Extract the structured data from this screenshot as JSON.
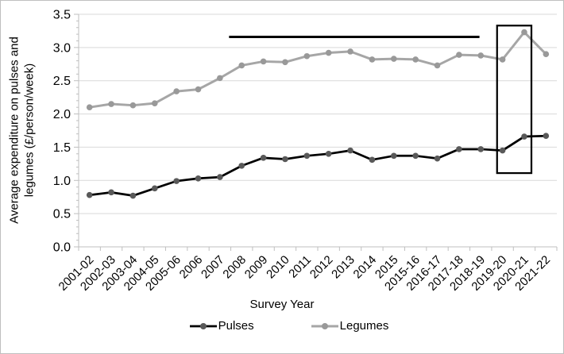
{
  "chart_data": {
    "type": "line",
    "xlabel": "Survey Year",
    "ylabel": "Average expenditure on pulses and legumes (£/person/week)",
    "ylabel_lines": [
      "Average expenditure on pulses and",
      "legumes (£/person/week)"
    ],
    "categories": [
      "2001-02",
      "2002-03",
      "2003-04",
      "2004-05",
      "2005-06",
      "2006",
      "2007",
      "2008",
      "2009",
      "2010",
      "2011",
      "2012",
      "2013",
      "2014",
      "2015",
      "2015-16",
      "2016-17",
      "2017-18",
      "2018-19",
      "2019-20",
      "2020-21",
      "2021-22"
    ],
    "series": [
      {
        "name": "Pulses",
        "color": "#000000",
        "marker_color": "#595959",
        "line_width": 2.75,
        "values": [
          0.78,
          0.82,
          0.77,
          0.88,
          0.99,
          1.03,
          1.05,
          1.22,
          1.34,
          1.32,
          1.37,
          1.4,
          1.45,
          1.31,
          1.37,
          1.37,
          1.33,
          1.47,
          1.47,
          1.45,
          1.66,
          1.67
        ]
      },
      {
        "name": "Legumes",
        "color": "#a6a6a6",
        "marker_color": "#999999",
        "line_width": 3,
        "values": [
          2.1,
          2.15,
          2.13,
          2.16,
          2.34,
          2.37,
          2.54,
          2.73,
          2.79,
          2.78,
          2.87,
          2.92,
          2.94,
          2.82,
          2.83,
          2.82,
          2.73,
          2.89,
          2.88,
          2.82,
          3.23,
          2.9
        ]
      }
    ],
    "ylim": [
      0,
      3.5
    ],
    "ytick_step": 0.5,
    "ytick_labels": [
      "0.0",
      "0.5",
      "1.0",
      "1.5",
      "2.0",
      "2.5",
      "3.0",
      "3.5"
    ],
    "y_minor_step": 0.1,
    "grid": "horizontal-major",
    "legend_position": "bottom",
    "colors": {
      "gridline": "#d9d9d9",
      "axis": "#bfbfbf",
      "text": "#000000"
    },
    "annotations": [
      {
        "type": "hline",
        "y": 3.16,
        "x_from_index": 6.42,
        "x_to_index": 17.94,
        "color": "#000000",
        "stroke_width": 3
      },
      {
        "type": "rect",
        "x_from_index": 18.75,
        "x_to_index": 20.33,
        "y_from": 1.11,
        "y_to": 3.33,
        "color": "#000000",
        "stroke_width": 2.25
      }
    ]
  }
}
